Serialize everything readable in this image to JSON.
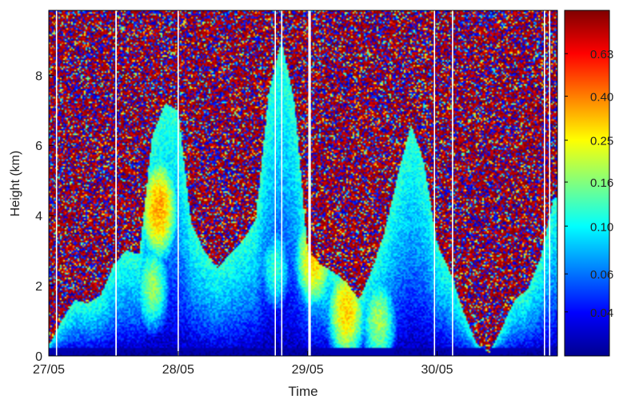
{
  "chart_data": {
    "type": "heatmap",
    "title": "",
    "xlabel": "Time",
    "ylabel": "Height (km)",
    "x_ticks": [
      "27/05",
      "28/05",
      "29/05",
      "30/05"
    ],
    "x_tick_values": [
      0,
      1,
      2,
      3
    ],
    "xlim": [
      0,
      3.93
    ],
    "y_ticks": [
      "0",
      "2",
      "4",
      "6",
      "8"
    ],
    "y_tick_values": [
      0,
      2,
      4,
      6,
      8
    ],
    "ylim": [
      0,
      9.85
    ],
    "colorbar": {
      "ticks": [
        "0.04",
        "0.06",
        "0.10",
        "0.16",
        "0.25",
        "0.40",
        "0.63"
      ],
      "scale": "log",
      "colormap": "jet",
      "vlim": [
        0.025,
        1.0
      ]
    },
    "grid": false,
    "clear_sky_levels": [
      {
        "t": 0.0,
        "h": 0.3
      },
      {
        "t": 0.1,
        "h": 1.0
      },
      {
        "t": 0.2,
        "h": 1.6
      },
      {
        "t": 0.3,
        "h": 1.5
      },
      {
        "t": 0.4,
        "h": 1.7
      },
      {
        "t": 0.5,
        "h": 2.6
      },
      {
        "t": 0.6,
        "h": 3.0
      },
      {
        "t": 0.7,
        "h": 2.9
      },
      {
        "t": 0.8,
        "h": 6.3
      },
      {
        "t": 0.9,
        "h": 7.2
      },
      {
        "t": 1.0,
        "h": 7.0
      },
      {
        "t": 1.1,
        "h": 3.8
      },
      {
        "t": 1.2,
        "h": 3.0
      },
      {
        "t": 1.3,
        "h": 2.5
      },
      {
        "t": 1.4,
        "h": 2.9
      },
      {
        "t": 1.5,
        "h": 3.3
      },
      {
        "t": 1.6,
        "h": 3.9
      },
      {
        "t": 1.7,
        "h": 7.5
      },
      {
        "t": 1.8,
        "h": 9.0
      },
      {
        "t": 1.9,
        "h": 7.2
      },
      {
        "t": 2.0,
        "h": 3.0
      },
      {
        "t": 2.1,
        "h": 2.6
      },
      {
        "t": 2.2,
        "h": 2.4
      },
      {
        "t": 2.3,
        "h": 2.1
      },
      {
        "t": 2.4,
        "h": 1.6
      },
      {
        "t": 2.5,
        "h": 2.5
      },
      {
        "t": 2.6,
        "h": 3.6
      },
      {
        "t": 2.7,
        "h": 5.2
      },
      {
        "t": 2.8,
        "h": 6.6
      },
      {
        "t": 2.9,
        "h": 5.5
      },
      {
        "t": 3.0,
        "h": 3.2
      },
      {
        "t": 3.1,
        "h": 2.4
      },
      {
        "t": 3.2,
        "h": 1.3
      },
      {
        "t": 3.3,
        "h": 0.4
      },
      {
        "t": 3.4,
        "h": 0.05
      },
      {
        "t": 3.5,
        "h": 0.8
      },
      {
        "t": 3.6,
        "h": 1.6
      },
      {
        "t": 3.7,
        "h": 1.9
      },
      {
        "t": 3.8,
        "h": 2.8
      },
      {
        "t": 3.9,
        "h": 4.5
      }
    ],
    "features": [
      {
        "t": 0.85,
        "h": 4.2,
        "value": 0.35
      },
      {
        "t": 0.8,
        "h": 2.0,
        "value": 0.17
      },
      {
        "t": 1.75,
        "h": 2.5,
        "value": 0.12
      },
      {
        "t": 2.05,
        "h": 2.8,
        "value": 0.3
      },
      {
        "t": 2.3,
        "h": 1.3,
        "value": 0.3
      },
      {
        "t": 2.55,
        "h": 1.0,
        "value": 0.18
      }
    ],
    "data_gaps": [
      0.06,
      0.52,
      0.52,
      1.0,
      1.75,
      1.8,
      2.01,
      2.02,
      2.98,
      3.12,
      3.83,
      3.87
    ]
  }
}
